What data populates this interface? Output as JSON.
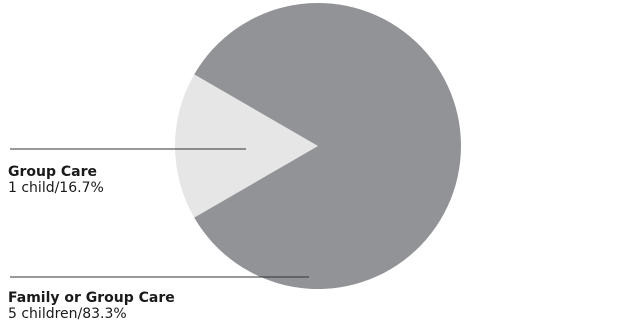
{
  "chart_data": {
    "type": "pie",
    "slices": [
      {
        "name": "Group Care",
        "detail": "1 child/16.7%",
        "count": 1,
        "percent": 16.7,
        "color": "#e6e6e7"
      },
      {
        "name": "Family or Group Care",
        "detail": "5 children/83.3%",
        "count": 5,
        "percent": 83.3,
        "color": "#929396"
      }
    ],
    "colors": {
      "leader_line": "#333333",
      "text": "#1a1a1a"
    }
  }
}
